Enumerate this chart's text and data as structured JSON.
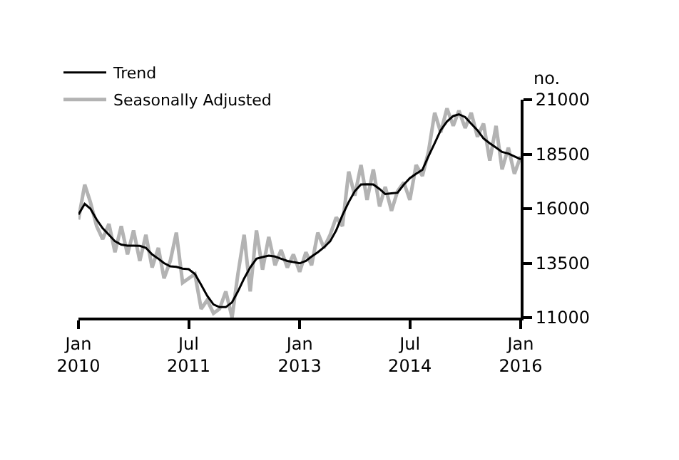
{
  "chart_data": {
    "type": "line",
    "ylabel": "no.",
    "x": [
      "2010-01",
      "2010-02",
      "2010-03",
      "2010-04",
      "2010-05",
      "2010-06",
      "2010-07",
      "2010-08",
      "2010-09",
      "2010-10",
      "2010-11",
      "2010-12",
      "2011-01",
      "2011-02",
      "2011-03",
      "2011-04",
      "2011-05",
      "2011-06",
      "2011-07",
      "2011-08",
      "2011-09",
      "2011-10",
      "2011-11",
      "2011-12",
      "2012-01",
      "2012-02",
      "2012-03",
      "2012-04",
      "2012-05",
      "2012-06",
      "2012-07",
      "2012-08",
      "2012-09",
      "2012-10",
      "2012-11",
      "2012-12",
      "2013-01",
      "2013-02",
      "2013-03",
      "2013-04",
      "2013-05",
      "2013-06",
      "2013-07",
      "2013-08",
      "2013-09",
      "2013-10",
      "2013-11",
      "2013-12",
      "2014-01",
      "2014-02",
      "2014-03",
      "2014-04",
      "2014-05",
      "2014-06",
      "2014-07",
      "2014-08",
      "2014-09",
      "2014-10",
      "2014-11",
      "2014-12",
      "2015-01",
      "2015-02",
      "2015-03",
      "2015-04",
      "2015-05",
      "2015-06",
      "2015-07",
      "2015-08",
      "2015-09",
      "2015-10",
      "2015-11",
      "2015-12",
      "2016-01"
    ],
    "series": [
      {
        "name": "Trend",
        "color": "#000000",
        "values": [
          15730,
          16220,
          16000,
          15500,
          15100,
          14800,
          14500,
          14350,
          14300,
          14300,
          14290,
          14200,
          13900,
          13700,
          13500,
          13350,
          13330,
          13250,
          13220,
          13000,
          12500,
          12000,
          11600,
          11480,
          11480,
          11700,
          12200,
          12800,
          13300,
          13700,
          13780,
          13840,
          13800,
          13700,
          13600,
          13550,
          13490,
          13600,
          13800,
          14000,
          14220,
          14500,
          15000,
          15700,
          16300,
          16800,
          17110,
          17120,
          17110,
          16900,
          16670,
          16700,
          16730,
          17100,
          17400,
          17600,
          17780,
          18400,
          19000,
          19600,
          20000,
          20250,
          20330,
          20200,
          19900,
          19600,
          19220,
          19000,
          18800,
          18600,
          18530,
          18400,
          18270
        ]
      },
      {
        "name": "Seasonally Adjusted",
        "color": "#b3b3b3",
        "values": [
          15500,
          17100,
          16300,
          15200,
          14600,
          15300,
          14000,
          15200,
          13900,
          15000,
          13600,
          14800,
          13300,
          14200,
          12800,
          13600,
          14900,
          12600,
          12800,
          13000,
          11400,
          11800,
          11200,
          11400,
          12200,
          11000,
          13000,
          14800,
          12200,
          15000,
          13200,
          14700,
          13400,
          14100,
          13300,
          13900,
          13100,
          14000,
          13400,
          14900,
          14200,
          14800,
          15600,
          15200,
          17700,
          16600,
          18000,
          16400,
          17800,
          16100,
          17000,
          15900,
          16800,
          17200,
          16400,
          18000,
          17500,
          18600,
          20400,
          19500,
          20600,
          19800,
          20500,
          19700,
          20400,
          19300,
          19900,
          18200,
          19800,
          17800,
          18800,
          17600,
          18400
        ]
      }
    ],
    "xlim": [
      "2010-01",
      "2016-01"
    ],
    "xticks": [
      {
        "value": "2010-01",
        "label": "Jan\n2010"
      },
      {
        "value": "2011-07",
        "label": "Jul\n2011"
      },
      {
        "value": "2013-01",
        "label": "Jan\n2013"
      },
      {
        "value": "2014-07",
        "label": "Jul\n2014"
      },
      {
        "value": "2016-01",
        "label": "Jan\n2016"
      }
    ],
    "ylim": [
      11000,
      21000
    ],
    "yticks": [
      11000,
      13500,
      16000,
      18500,
      21000
    ],
    "legend": "top left",
    "marker": "none",
    "line_style": "solid"
  }
}
